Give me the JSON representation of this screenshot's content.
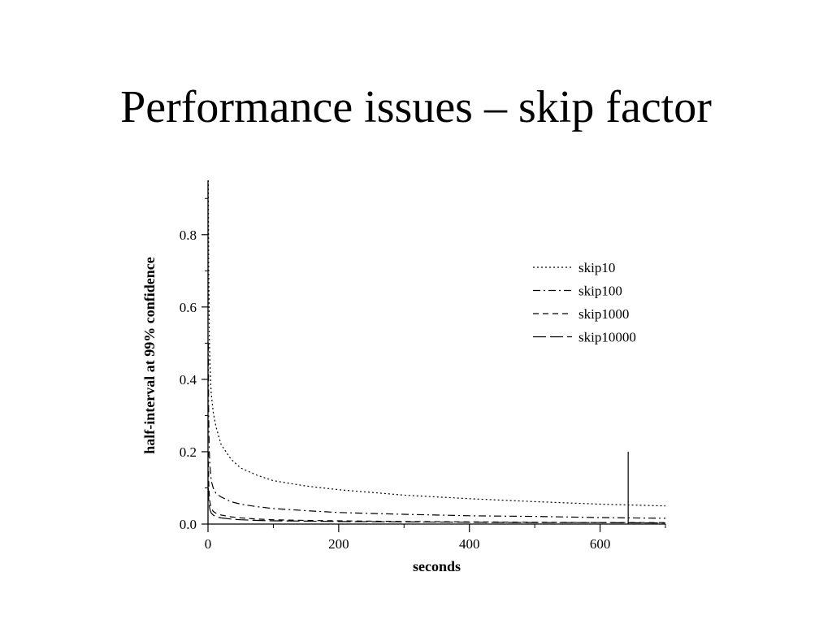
{
  "slide": {
    "title": "Performance issues – skip factor"
  },
  "chart_data": {
    "type": "line",
    "title": "",
    "xlabel": "seconds",
    "ylabel": "half-interval at 99% confidence",
    "xlim": [
      0,
      700
    ],
    "ylim": [
      0,
      0.95
    ],
    "xticks": [
      0,
      200,
      400,
      600
    ],
    "yticks": [
      0.0,
      0.2,
      0.4,
      0.6,
      0.8
    ],
    "ytick_labels": [
      "0.0",
      "0.2",
      "0.4",
      "0.6",
      "0.8"
    ],
    "grid": false,
    "legend_position": "top-right",
    "series": [
      {
        "name": "skip10",
        "dash": "dotted",
        "x": [
          0.5,
          1,
          2,
          3,
          5,
          8,
          12,
          20,
          35,
          50,
          75,
          100,
          150,
          200,
          300,
          400,
          500,
          600,
          700
        ],
        "y": [
          0.95,
          0.72,
          0.52,
          0.44,
          0.36,
          0.31,
          0.27,
          0.22,
          0.18,
          0.155,
          0.135,
          0.12,
          0.105,
          0.095,
          0.08,
          0.07,
          0.062,
          0.055,
          0.05
        ]
      },
      {
        "name": "skip100",
        "dash": "dashdot",
        "x": [
          0.5,
          1,
          2,
          3,
          5,
          8,
          12,
          20,
          35,
          50,
          75,
          100,
          150,
          200,
          300,
          400,
          500,
          600,
          700
        ],
        "y": [
          0.5,
          0.3,
          0.2,
          0.16,
          0.12,
          0.1,
          0.085,
          0.075,
          0.062,
          0.055,
          0.048,
          0.043,
          0.037,
          0.032,
          0.027,
          0.023,
          0.021,
          0.018,
          0.016
        ]
      },
      {
        "name": "skip1000",
        "dash": "dashed",
        "x": [
          0.5,
          1,
          2,
          3,
          5,
          8,
          12,
          20,
          35,
          50,
          75,
          100,
          150,
          200,
          300,
          400,
          500,
          600,
          700
        ],
        "y": [
          0.2,
          0.12,
          0.08,
          0.06,
          0.045,
          0.035,
          0.03,
          0.025,
          0.02,
          0.017,
          0.014,
          0.012,
          0.01,
          0.009,
          0.007,
          0.006,
          0.005,
          0.004,
          0.004
        ]
      },
      {
        "name": "skip10000",
        "dash": "longdash",
        "x": [
          0.5,
          1,
          2,
          3,
          5,
          8,
          12,
          20,
          35,
          50,
          75,
          100,
          150,
          200,
          300,
          400,
          500,
          600,
          700
        ],
        "y": [
          0.1,
          0.07,
          0.05,
          0.04,
          0.03,
          0.025,
          0.02,
          0.017,
          0.014,
          0.012,
          0.01,
          0.009,
          0.008,
          0.007,
          0.006,
          0.005,
          0.004,
          0.004,
          0.003
        ]
      }
    ],
    "marker_line": {
      "x": 643,
      "y_top": 0.2,
      "y_bottom": 0.0
    }
  }
}
